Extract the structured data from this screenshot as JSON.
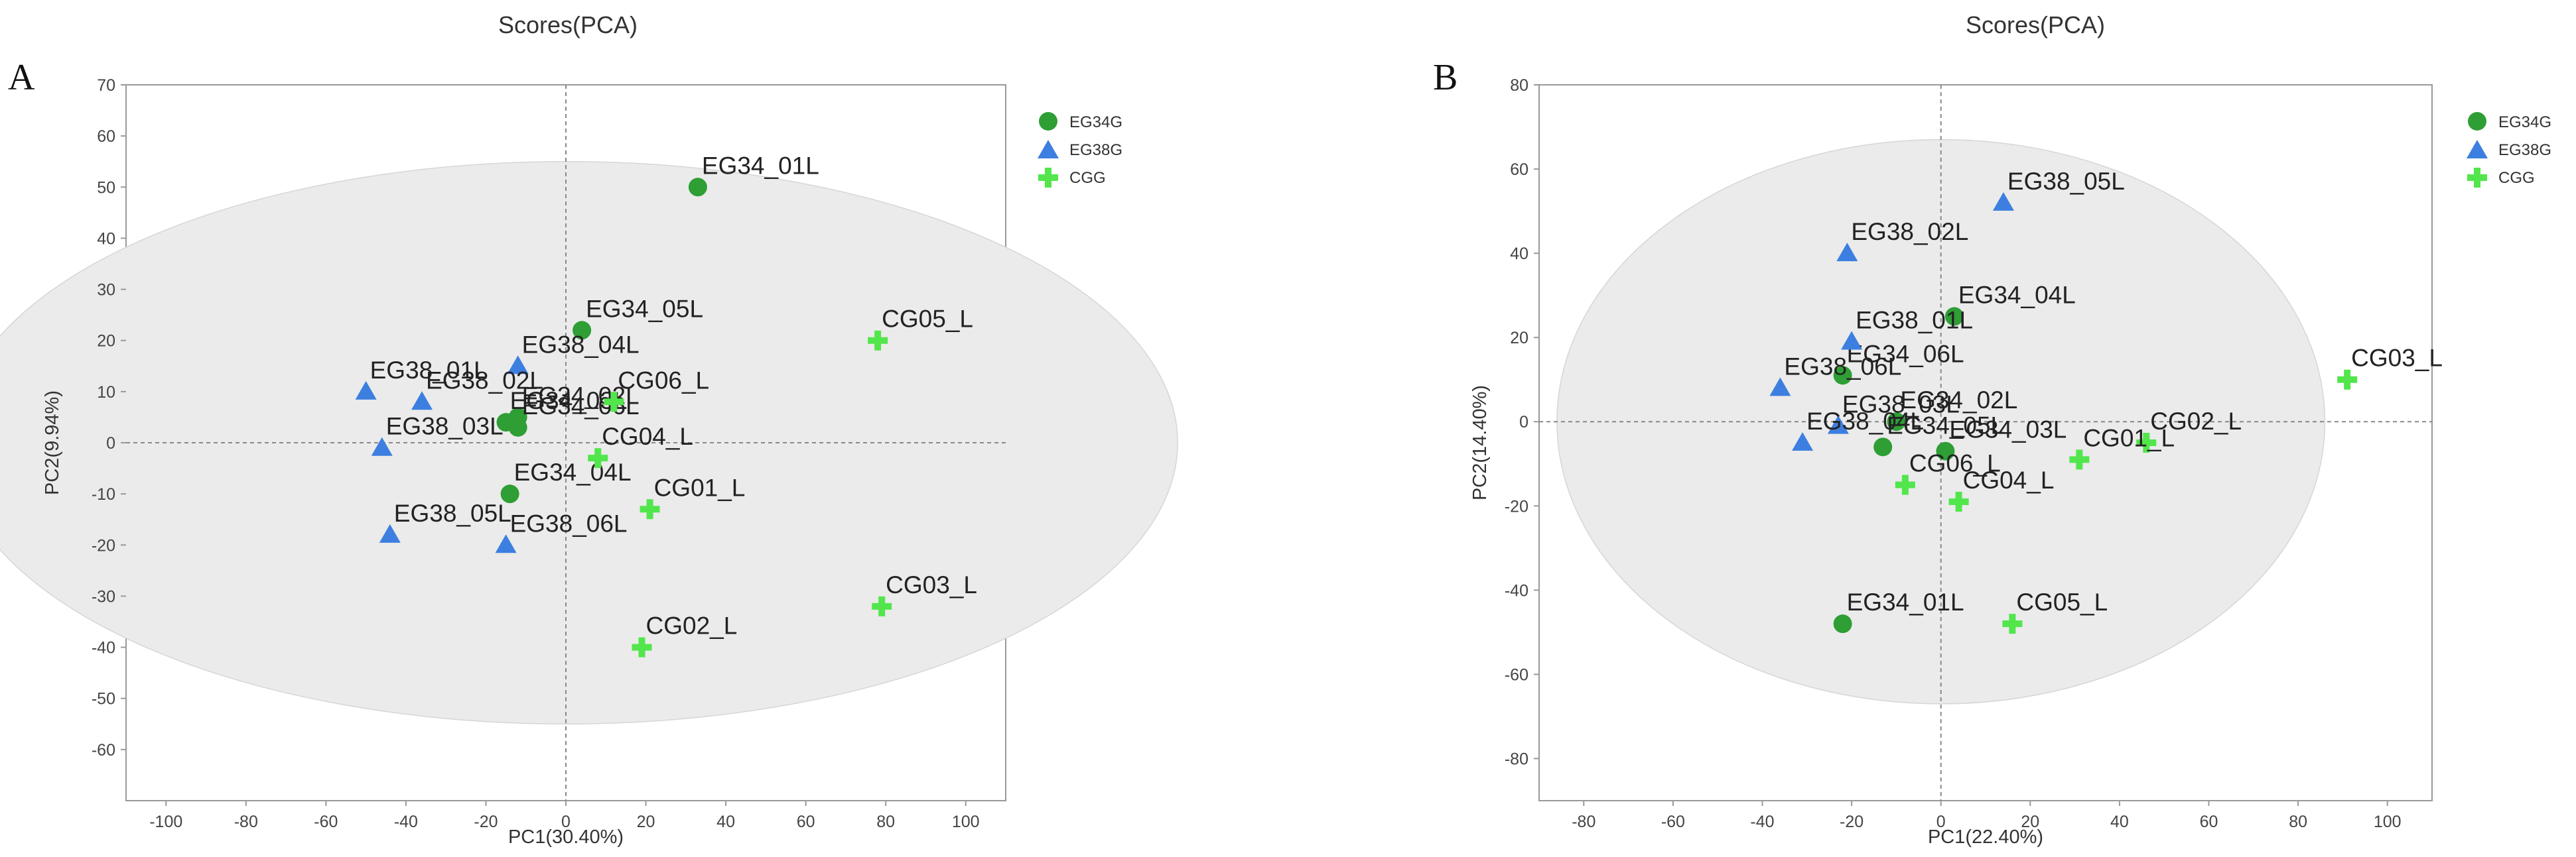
{
  "colors": {
    "EG34G": "#2e9e35",
    "EG38G": "#3c7fe0",
    "CGG": "#52e64c",
    "ellipse": "#ebebeb",
    "ellipse_stroke": "#d6d6d6",
    "guide": "#888888"
  },
  "chart_data": [
    {
      "type": "scatter",
      "panel": "A",
      "title": "Scores(PCA)",
      "xlabel": "PC1(30.40%)",
      "ylabel": "PC2(9.94%)",
      "xlim": [
        -110,
        110
      ],
      "ylim": [
        -70,
        70
      ],
      "xticks": [
        -100,
        -80,
        -60,
        -40,
        -20,
        0,
        20,
        40,
        60,
        80,
        100
      ],
      "yticks": [
        -60,
        -50,
        -40,
        -30,
        -20,
        -10,
        0,
        10,
        20,
        30,
        40,
        50,
        60,
        70
      ],
      "ellipse": {
        "cx": 0,
        "cy": 0,
        "rx": 153,
        "ry": 55
      },
      "legend_position": "top-right",
      "series": [
        {
          "name": "EG34G",
          "marker": "circle",
          "points": [
            {
              "label": "EG34_01L",
              "x": 33,
              "y": 50
            },
            {
              "label": "EG34_05L",
              "x": 4,
              "y": 22
            },
            {
              "label": "EG34_04L",
              "x": -14,
              "y": -10
            },
            {
              "label": "EG34_02L",
              "x": -12,
              "y": 5
            },
            {
              "label": "EG34_03L",
              "x": -15,
              "y": 4
            },
            {
              "label": "EG34_06L",
              "x": -12,
              "y": 3
            }
          ]
        },
        {
          "name": "EG38G",
          "marker": "triangle",
          "points": [
            {
              "label": "EG38_04L",
              "x": -12,
              "y": 15
            },
            {
              "label": "EG38_01L",
              "x": -50,
              "y": 10
            },
            {
              "label": "EG38_02L",
              "x": -36,
              "y": 8
            },
            {
              "label": "EG38_03L",
              "x": -46,
              "y": -1
            },
            {
              "label": "EG38_05L",
              "x": -44,
              "y": -18
            },
            {
              "label": "EG38_06L",
              "x": -15,
              "y": -20
            }
          ]
        },
        {
          "name": "CGG",
          "marker": "cross",
          "points": [
            {
              "label": "CG05_L",
              "x": 78,
              "y": 20
            },
            {
              "label": "CG06_L",
              "x": 12,
              "y": 8
            },
            {
              "label": "CG04_L",
              "x": 8,
              "y": -3
            },
            {
              "label": "CG01_L",
              "x": 21,
              "y": -13
            },
            {
              "label": "CG02_L",
              "x": 19,
              "y": -40
            },
            {
              "label": "CG03_L",
              "x": 79,
              "y": -32
            }
          ]
        }
      ]
    },
    {
      "type": "scatter",
      "panel": "B",
      "title": "Scores(PCA)",
      "xlabel": "PC1(22.40%)",
      "ylabel": "PC2(14.40%)",
      "xlim": [
        -90,
        110
      ],
      "ylim": [
        -90,
        80
      ],
      "xticks": [
        -80,
        -60,
        -40,
        -20,
        0,
        20,
        40,
        60,
        80,
        100
      ],
      "yticks": [
        -80,
        -60,
        -40,
        -20,
        0,
        20,
        40,
        60,
        80
      ],
      "ellipse": {
        "cx": 0,
        "cy": 0,
        "rx": 86,
        "ry": 67
      },
      "legend_position": "top-right",
      "series": [
        {
          "name": "EG34G",
          "marker": "circle",
          "points": [
            {
              "label": "EG34_04L",
              "x": 3,
              "y": 25
            },
            {
              "label": "EG34_06L",
              "x": -22,
              "y": 11
            },
            {
              "label": "EG34_02L",
              "x": -10,
              "y": 0
            },
            {
              "label": "EG34_05L",
              "x": -13,
              "y": -6
            },
            {
              "label": "EG34_03L",
              "x": 1,
              "y": -7
            },
            {
              "label": "EG34_01L",
              "x": -22,
              "y": -48
            }
          ]
        },
        {
          "name": "EG38G",
          "marker": "triangle",
          "points": [
            {
              "label": "EG38_05L",
              "x": 14,
              "y": 52
            },
            {
              "label": "EG38_02L",
              "x": -21,
              "y": 40
            },
            {
              "label": "EG38_01L",
              "x": -20,
              "y": 19
            },
            {
              "label": "EG38_06L",
              "x": -36,
              "y": 8
            },
            {
              "label": "EG38_03L",
              "x": -23,
              "y": -1
            },
            {
              "label": "EG38_04L",
              "x": -31,
              "y": -5
            }
          ]
        },
        {
          "name": "CGG",
          "marker": "cross",
          "points": [
            {
              "label": "CG03_L",
              "x": 91,
              "y": 10
            },
            {
              "label": "CG02_L",
              "x": 46,
              "y": -5
            },
            {
              "label": "CG01_L",
              "x": 31,
              "y": -9
            },
            {
              "label": "CG06_L",
              "x": -8,
              "y": -15
            },
            {
              "label": "CG04_L",
              "x": 4,
              "y": -19
            },
            {
              "label": "CG05_L",
              "x": 16,
              "y": -48
            }
          ]
        }
      ]
    }
  ]
}
